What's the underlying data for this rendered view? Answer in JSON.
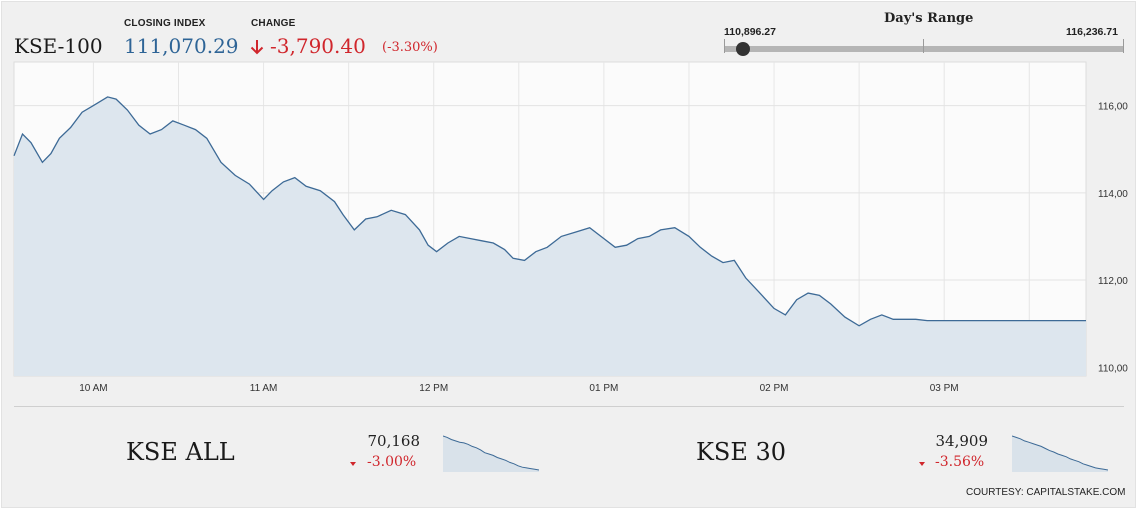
{
  "header": {
    "index_name": "KSE-100",
    "closing_label": "CLOSING INDEX",
    "closing_value": "111,070.29",
    "change_label": "CHANGE",
    "change_value": "-3,790.40",
    "change_pct": "(-3.30%)",
    "down_color": "#d0262c",
    "value_color": "#2e6496",
    "arrow_icon": "arrow-down-icon"
  },
  "day_range": {
    "title": "Day's Range",
    "low": "110,896.27",
    "high": "116,236.71",
    "current_fraction": 0.03
  },
  "chart_data": {
    "type": "area",
    "xlabel": "",
    "ylabel": "",
    "x_ticks": [
      "10 AM",
      "11 AM",
      "12 PM",
      "01 PM",
      "02 PM",
      "03 PM"
    ],
    "y_ticks": [
      "116,00",
      "114,00",
      "112,00",
      "110,00"
    ],
    "ylim": [
      109800,
      117000
    ],
    "grid": true,
    "line_color": "#3d6a96",
    "fill_color": "#dde6ee",
    "series": [
      {
        "x": [
          "09:32",
          "09:35",
          "09:38",
          "09:42",
          "09:45",
          "09:48",
          "09:52",
          "09:56",
          "10:00",
          "10:05",
          "10:08",
          "10:12",
          "10:16",
          "10:20",
          "10:24",
          "10:28",
          "10:32",
          "10:36",
          "10:40",
          "10:45",
          "10:50",
          "10:55",
          "11:00",
          "11:03",
          "11:07",
          "11:11",
          "11:15",
          "11:20",
          "11:25",
          "11:28",
          "11:32",
          "11:36",
          "11:40",
          "11:45",
          "11:50",
          "11:55",
          "11:58",
          "12:01",
          "12:05",
          "12:09",
          "12:13",
          "12:17",
          "12:21",
          "12:25",
          "12:28",
          "12:32",
          "12:36",
          "12:40",
          "12:45",
          "12:50",
          "12:55",
          "13:00",
          "13:04",
          "13:08",
          "13:12",
          "13:16",
          "13:20",
          "13:25",
          "13:30",
          "13:34",
          "13:38",
          "13:42",
          "13:46",
          "13:50",
          "13:55",
          "14:00",
          "14:04",
          "14:08",
          "14:12",
          "14:16",
          "14:20",
          "14:25",
          "14:30",
          "14:34",
          "14:38",
          "14:42",
          "14:46",
          "14:50",
          "14:54",
          "14:58",
          "15:02",
          "15:06",
          "15:10",
          "15:14",
          "15:18",
          "15:22",
          "15:26",
          "15:30",
          "15:35",
          "15:40",
          "15:45",
          "15:50"
        ],
        "values": [
          114850,
          115350,
          115150,
          114700,
          114900,
          115250,
          115500,
          115850,
          116000,
          116200,
          116150,
          115900,
          115550,
          115350,
          115450,
          115650,
          115550,
          115450,
          115250,
          114700,
          114400,
          114200,
          113850,
          114050,
          114250,
          114350,
          114150,
          114050,
          113800,
          113500,
          113150,
          113400,
          113450,
          113600,
          113500,
          113150,
          112800,
          112650,
          112850,
          113000,
          112950,
          112900,
          112850,
          112700,
          112500,
          112450,
          112650,
          112750,
          113000,
          113100,
          113200,
          112950,
          112750,
          112800,
          112950,
          113000,
          113150,
          113200,
          113000,
          112750,
          112550,
          112400,
          112450,
          112050,
          111700,
          111350,
          111200,
          111550,
          111700,
          111650,
          111450,
          111150,
          110950,
          111100,
          111200,
          111100,
          111100,
          111100,
          111070,
          111070,
          111070,
          111070,
          111070,
          111070,
          111070,
          111070,
          111070,
          111070,
          111070,
          111070,
          111070,
          111070
        ]
      }
    ]
  },
  "footer": {
    "kse_all": {
      "name": "KSE ALL",
      "value": "70,168",
      "change": "-3.00%",
      "spark": [
        100,
        96,
        90,
        86,
        82,
        80,
        76,
        70,
        66,
        60,
        52,
        48,
        44,
        38,
        34,
        30,
        24,
        20,
        14,
        10,
        8,
        6,
        4,
        2
      ]
    },
    "kse_30": {
      "name": "KSE 30",
      "value": "34,909",
      "change": "-3.56%",
      "spark": [
        100,
        96,
        92,
        86,
        82,
        78,
        74,
        70,
        64,
        58,
        54,
        48,
        44,
        40,
        34,
        30,
        26,
        20,
        16,
        12,
        8,
        6,
        4,
        2
      ]
    },
    "courtesy": "COURTESY: CAPITALSTAKE.COM"
  }
}
